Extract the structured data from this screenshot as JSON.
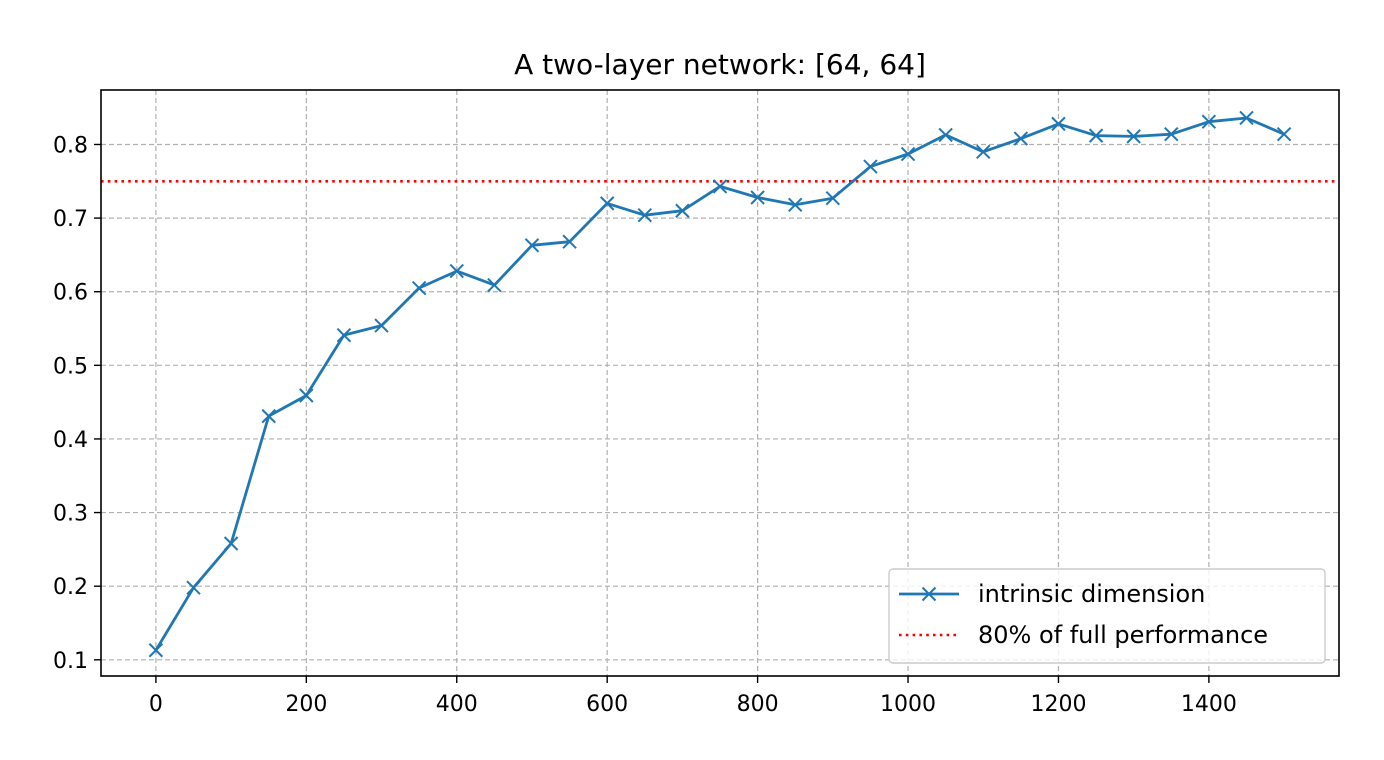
{
  "chart_data": {
    "type": "line",
    "title": "A two-layer network: [64, 64]",
    "xlabel": "",
    "ylabel": "",
    "xlim": [
      -73,
      1573
    ],
    "ylim": [
      0.078,
      0.874
    ],
    "xticks": [
      0,
      200,
      400,
      600,
      800,
      1000,
      1200,
      1400
    ],
    "yticks": [
      0.1,
      0.2,
      0.3,
      0.4,
      0.5,
      0.6,
      0.7,
      0.8
    ],
    "grid": true,
    "legend_position": "lower-right",
    "series": [
      {
        "name": "intrinsic dimension",
        "color": "#1f77b4",
        "marker": "x",
        "line_style": "solid",
        "x": [
          0,
          50,
          100,
          150,
          200,
          250,
          300,
          350,
          400,
          450,
          500,
          550,
          600,
          650,
          700,
          750,
          800,
          850,
          900,
          950,
          1000,
          1050,
          1100,
          1150,
          1200,
          1250,
          1300,
          1350,
          1400,
          1450,
          1500
        ],
        "y": [
          0.113,
          0.198,
          0.258,
          0.431,
          0.459,
          0.541,
          0.554,
          0.605,
          0.628,
          0.609,
          0.663,
          0.668,
          0.72,
          0.704,
          0.71,
          0.743,
          0.728,
          0.718,
          0.727,
          0.77,
          0.787,
          0.813,
          0.79,
          0.808,
          0.828,
          0.812,
          0.811,
          0.814,
          0.831,
          0.836,
          0.814
        ]
      },
      {
        "name": "80% of full performance",
        "color": "#ff0000",
        "line_style": "dotted",
        "y_constant": 0.75
      }
    ]
  }
}
